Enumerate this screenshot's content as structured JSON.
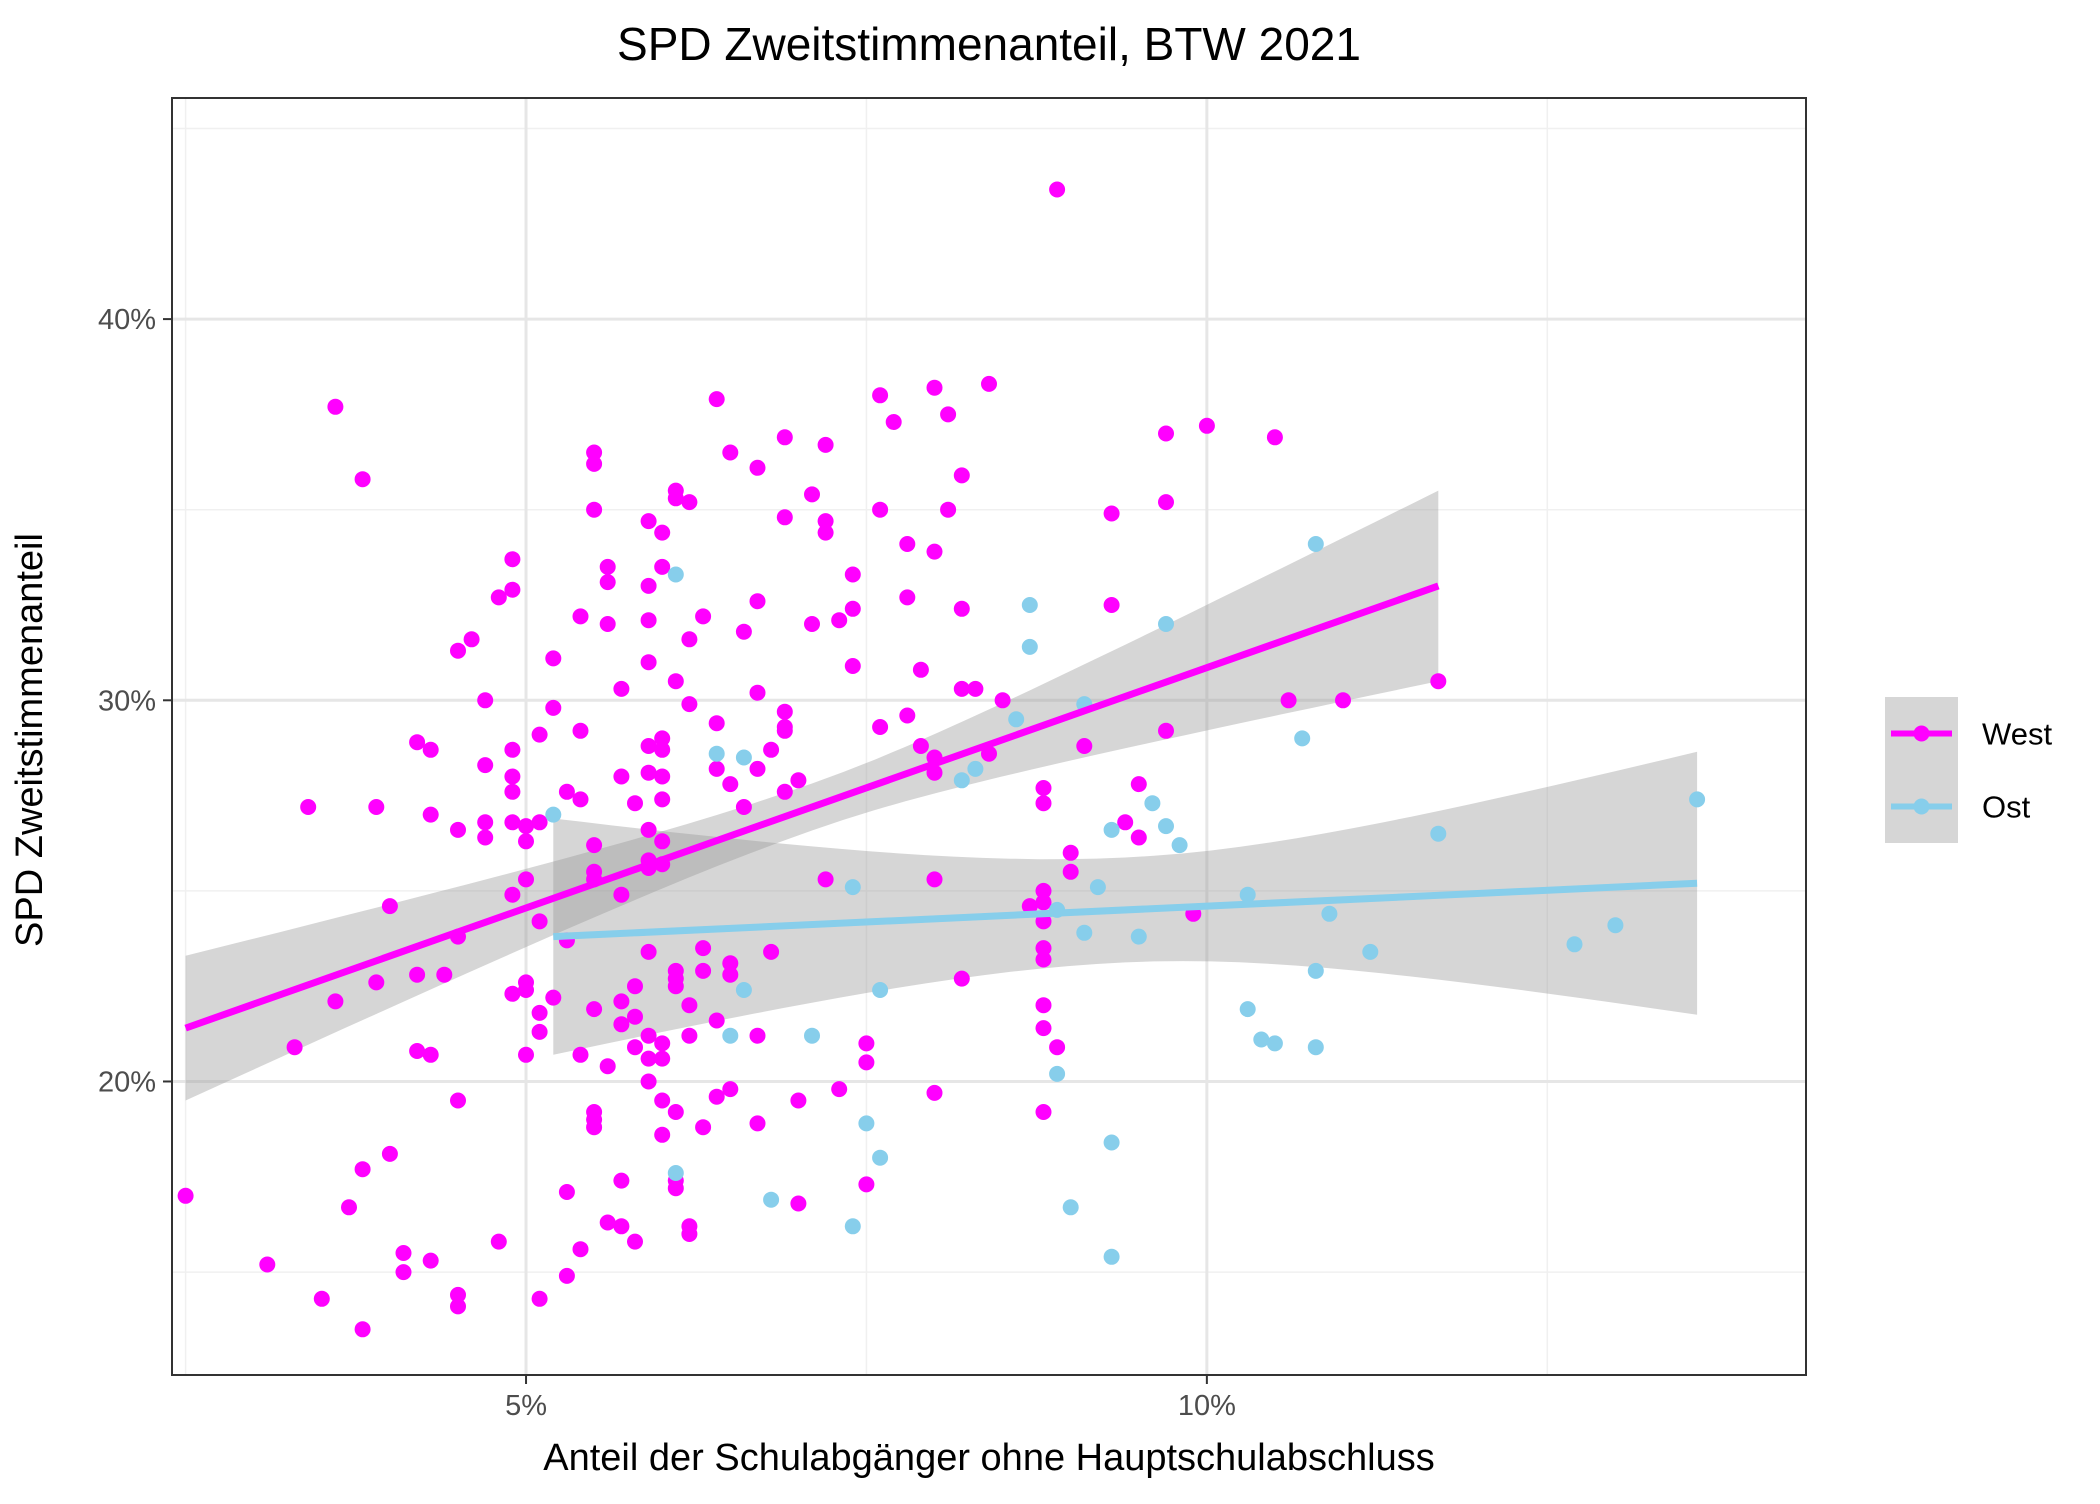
{
  "chart_data": {
    "type": "scatter",
    "title": "SPD Zweitstimmenanteil, BTW 2021",
    "xlabel": "Anteil der Schulabgänger ohne Hauptschulabschluss",
    "ylabel": "SPD Zweitstimmenanteil",
    "xlim": [
      2.4,
      14.4
    ],
    "ylim": [
      12.3,
      45.8
    ],
    "x_ticks": [
      {
        "value": 5,
        "label": "5%"
      },
      {
        "value": 10,
        "label": "10%"
      }
    ],
    "y_ticks": [
      {
        "value": 20,
        "label": "20%"
      },
      {
        "value": 30,
        "label": "30%"
      },
      {
        "value": 40,
        "label": "40%"
      }
    ],
    "grid": true,
    "legend_position": "right",
    "series": [
      {
        "name": "West",
        "color": "#FF00FF",
        "trend": {
          "x": [
            2.5,
            11.7
          ],
          "y": [
            21.4,
            33.0
          ],
          "ci_lower": [
            19.5,
            30.5
          ],
          "ci_upper": [
            23.3,
            35.5
          ]
        },
        "points": [
          [
            2.5,
            17.0
          ],
          [
            3.1,
            15.2
          ],
          [
            3.3,
            20.9
          ],
          [
            3.4,
            27.2
          ],
          [
            3.5,
            14.3
          ],
          [
            3.6,
            22.1
          ],
          [
            3.6,
            37.7
          ],
          [
            3.7,
            16.7
          ],
          [
            3.8,
            13.5
          ],
          [
            3.8,
            17.7
          ],
          [
            3.8,
            35.8
          ],
          [
            3.9,
            22.6
          ],
          [
            3.9,
            27.2
          ],
          [
            4.0,
            18.1
          ],
          [
            4.0,
            24.6
          ],
          [
            4.1,
            15.5
          ],
          [
            4.1,
            15.0
          ],
          [
            4.2,
            20.8
          ],
          [
            4.2,
            22.8
          ],
          [
            4.2,
            28.9
          ],
          [
            4.3,
            15.3
          ],
          [
            4.3,
            20.7
          ],
          [
            4.3,
            27.0
          ],
          [
            4.3,
            28.7
          ],
          [
            4.4,
            22.8
          ],
          [
            4.5,
            14.4
          ],
          [
            4.5,
            14.1
          ],
          [
            4.5,
            19.5
          ],
          [
            4.5,
            23.8
          ],
          [
            4.5,
            26.6
          ],
          [
            4.5,
            31.3
          ],
          [
            4.6,
            31.6
          ],
          [
            4.7,
            26.4
          ],
          [
            4.7,
            26.8
          ],
          [
            4.7,
            28.3
          ],
          [
            4.7,
            30.0
          ],
          [
            4.8,
            15.8
          ],
          [
            4.8,
            32.7
          ],
          [
            4.9,
            22.3
          ],
          [
            4.9,
            24.9
          ],
          [
            4.9,
            26.8
          ],
          [
            4.9,
            27.6
          ],
          [
            4.9,
            28.0
          ],
          [
            4.9,
            28.7
          ],
          [
            4.9,
            32.9
          ],
          [
            4.9,
            33.7
          ],
          [
            5.0,
            20.7
          ],
          [
            5.0,
            22.4
          ],
          [
            5.0,
            22.6
          ],
          [
            5.0,
            25.3
          ],
          [
            5.0,
            26.3
          ],
          [
            5.0,
            26.7
          ],
          [
            5.1,
            14.3
          ],
          [
            5.1,
            21.3
          ],
          [
            5.1,
            21.8
          ],
          [
            5.1,
            24.2
          ],
          [
            5.1,
            26.8
          ],
          [
            5.1,
            29.1
          ],
          [
            5.2,
            22.2
          ],
          [
            5.2,
            29.8
          ],
          [
            5.2,
            31.1
          ],
          [
            5.3,
            14.9
          ],
          [
            5.3,
            17.1
          ],
          [
            5.3,
            23.7
          ],
          [
            5.3,
            27.6
          ],
          [
            5.4,
            15.6
          ],
          [
            5.4,
            20.7
          ],
          [
            5.4,
            27.4
          ],
          [
            5.4,
            29.2
          ],
          [
            5.4,
            32.2
          ],
          [
            5.5,
            18.8
          ],
          [
            5.5,
            19.0
          ],
          [
            5.5,
            19.2
          ],
          [
            5.5,
            21.9
          ],
          [
            5.5,
            25.3
          ],
          [
            5.5,
            25.5
          ],
          [
            5.5,
            26.2
          ],
          [
            5.5,
            35.0
          ],
          [
            5.5,
            36.2
          ],
          [
            5.5,
            36.5
          ],
          [
            5.6,
            16.3
          ],
          [
            5.6,
            20.4
          ],
          [
            5.6,
            32.0
          ],
          [
            5.6,
            33.1
          ],
          [
            5.6,
            33.5
          ],
          [
            5.7,
            16.2
          ],
          [
            5.7,
            17.4
          ],
          [
            5.7,
            21.5
          ],
          [
            5.7,
            22.1
          ],
          [
            5.7,
            24.9
          ],
          [
            5.7,
            28.0
          ],
          [
            5.7,
            30.3
          ],
          [
            5.8,
            15.8
          ],
          [
            5.8,
            20.9
          ],
          [
            5.8,
            21.7
          ],
          [
            5.8,
            22.5
          ],
          [
            5.8,
            27.3
          ],
          [
            5.9,
            20.0
          ],
          [
            5.9,
            20.6
          ],
          [
            5.9,
            21.2
          ],
          [
            5.9,
            23.4
          ],
          [
            5.9,
            25.6
          ],
          [
            5.9,
            25.8
          ],
          [
            5.9,
            26.6
          ],
          [
            5.9,
            28.1
          ],
          [
            5.9,
            28.8
          ],
          [
            5.9,
            31.0
          ],
          [
            5.9,
            32.1
          ],
          [
            5.9,
            33.0
          ],
          [
            5.9,
            34.7
          ],
          [
            6.0,
            18.6
          ],
          [
            6.0,
            19.5
          ],
          [
            6.0,
            20.6
          ],
          [
            6.0,
            21.0
          ],
          [
            6.0,
            25.7
          ],
          [
            6.0,
            26.3
          ],
          [
            6.0,
            27.4
          ],
          [
            6.0,
            28.0
          ],
          [
            6.0,
            28.7
          ],
          [
            6.0,
            29.0
          ],
          [
            6.0,
            33.5
          ],
          [
            6.0,
            34.4
          ],
          [
            6.1,
            17.2
          ],
          [
            6.1,
            17.4
          ],
          [
            6.1,
            19.2
          ],
          [
            6.1,
            22.5
          ],
          [
            6.1,
            22.7
          ],
          [
            6.1,
            22.9
          ],
          [
            6.1,
            30.5
          ],
          [
            6.1,
            35.3
          ],
          [
            6.1,
            35.5
          ],
          [
            6.2,
            16.0
          ],
          [
            6.2,
            16.2
          ],
          [
            6.2,
            21.2
          ],
          [
            6.2,
            22.0
          ],
          [
            6.2,
            29.9
          ],
          [
            6.2,
            31.6
          ],
          [
            6.2,
            35.2
          ],
          [
            6.3,
            18.8
          ],
          [
            6.3,
            22.9
          ],
          [
            6.3,
            23.5
          ],
          [
            6.3,
            32.2
          ],
          [
            6.4,
            19.6
          ],
          [
            6.4,
            21.6
          ],
          [
            6.4,
            28.2
          ],
          [
            6.4,
            29.4
          ],
          [
            6.4,
            37.9
          ],
          [
            6.5,
            19.8
          ],
          [
            6.5,
            22.8
          ],
          [
            6.5,
            23.1
          ],
          [
            6.5,
            27.8
          ],
          [
            6.5,
            36.5
          ],
          [
            6.6,
            27.2
          ],
          [
            6.6,
            31.8
          ],
          [
            6.7,
            18.9
          ],
          [
            6.7,
            21.2
          ],
          [
            6.7,
            28.2
          ],
          [
            6.7,
            30.2
          ],
          [
            6.7,
            32.6
          ],
          [
            6.7,
            36.1
          ],
          [
            6.8,
            23.4
          ],
          [
            6.8,
            28.7
          ],
          [
            6.9,
            27.6
          ],
          [
            6.9,
            29.2
          ],
          [
            6.9,
            29.3
          ],
          [
            6.9,
            29.7
          ],
          [
            6.9,
            34.8
          ],
          [
            6.9,
            36.9
          ],
          [
            7.0,
            16.8
          ],
          [
            7.0,
            19.5
          ],
          [
            7.0,
            27.9
          ],
          [
            7.1,
            32.0
          ],
          [
            7.1,
            35.4
          ],
          [
            7.2,
            25.3
          ],
          [
            7.2,
            34.4
          ],
          [
            7.2,
            34.7
          ],
          [
            7.2,
            36.7
          ],
          [
            7.3,
            19.8
          ],
          [
            7.3,
            32.1
          ],
          [
            7.4,
            30.9
          ],
          [
            7.4,
            32.4
          ],
          [
            7.4,
            33.3
          ],
          [
            7.5,
            17.3
          ],
          [
            7.5,
            20.5
          ],
          [
            7.5,
            21.0
          ],
          [
            7.6,
            29.3
          ],
          [
            7.6,
            35.0
          ],
          [
            7.6,
            38.0
          ],
          [
            7.7,
            37.3
          ],
          [
            7.8,
            29.6
          ],
          [
            7.8,
            32.7
          ],
          [
            7.8,
            34.1
          ],
          [
            7.9,
            28.8
          ],
          [
            7.9,
            30.8
          ],
          [
            8.0,
            19.7
          ],
          [
            8.0,
            25.3
          ],
          [
            8.0,
            28.1
          ],
          [
            8.0,
            28.5
          ],
          [
            8.0,
            33.9
          ],
          [
            8.0,
            38.2
          ],
          [
            8.1,
            35.0
          ],
          [
            8.1,
            37.5
          ],
          [
            8.2,
            22.7
          ],
          [
            8.2,
            30.3
          ],
          [
            8.2,
            32.4
          ],
          [
            8.2,
            35.9
          ],
          [
            8.3,
            30.3
          ],
          [
            8.4,
            28.6
          ],
          [
            8.4,
            38.3
          ],
          [
            8.5,
            30.0
          ],
          [
            8.7,
            24.6
          ],
          [
            8.8,
            19.2
          ],
          [
            8.8,
            21.4
          ],
          [
            8.8,
            22.0
          ],
          [
            8.8,
            23.2
          ],
          [
            8.8,
            23.5
          ],
          [
            8.8,
            24.2
          ],
          [
            8.8,
            24.7
          ],
          [
            8.8,
            25.0
          ],
          [
            8.8,
            27.3
          ],
          [
            8.8,
            27.7
          ],
          [
            8.9,
            20.9
          ],
          [
            8.9,
            43.4
          ],
          [
            9.0,
            25.5
          ],
          [
            9.0,
            26.0
          ],
          [
            9.1,
            28.8
          ],
          [
            9.3,
            32.5
          ],
          [
            9.3,
            34.9
          ],
          [
            9.4,
            26.8
          ],
          [
            9.5,
            26.4
          ],
          [
            9.5,
            27.8
          ],
          [
            9.7,
            29.2
          ],
          [
            9.7,
            35.2
          ],
          [
            9.7,
            37.0
          ],
          [
            9.9,
            24.4
          ],
          [
            10.0,
            37.2
          ],
          [
            10.5,
            36.9
          ],
          [
            10.6,
            30.0
          ],
          [
            11.0,
            30.0
          ],
          [
            11.7,
            30.5
          ]
        ]
      },
      {
        "name": "Ost",
        "color": "#87CEEB",
        "trend": {
          "x": [
            5.2,
            13.6
          ],
          "y": [
            23.8,
            25.2
          ],
          "ci_lower": [
            20.7,
            21.8
          ],
          "ci_upper": [
            26.9,
            28.7
          ]
        },
        "points": [
          [
            5.2,
            27.0
          ],
          [
            6.1,
            17.6
          ],
          [
            6.1,
            33.3
          ],
          [
            6.4,
            28.6
          ],
          [
            6.6,
            28.5
          ],
          [
            6.6,
            22.4
          ],
          [
            6.5,
            21.2
          ],
          [
            6.8,
            16.9
          ],
          [
            7.1,
            21.2
          ],
          [
            7.4,
            25.1
          ],
          [
            7.4,
            16.2
          ],
          [
            7.5,
            18.9
          ],
          [
            7.6,
            22.4
          ],
          [
            7.6,
            18.0
          ],
          [
            8.2,
            27.9
          ],
          [
            8.3,
            28.2
          ],
          [
            8.6,
            29.5
          ],
          [
            8.7,
            31.4
          ],
          [
            8.7,
            32.5
          ],
          [
            8.9,
            24.5
          ],
          [
            8.9,
            20.2
          ],
          [
            9.0,
            16.7
          ],
          [
            9.1,
            23.9
          ],
          [
            9.1,
            29.9
          ],
          [
            9.2,
            25.1
          ],
          [
            9.3,
            26.6
          ],
          [
            9.3,
            18.4
          ],
          [
            9.3,
            15.4
          ],
          [
            9.5,
            23.8
          ],
          [
            9.6,
            27.3
          ],
          [
            9.7,
            26.7
          ],
          [
            9.7,
            32.0
          ],
          [
            9.8,
            26.2
          ],
          [
            10.3,
            24.9
          ],
          [
            10.3,
            21.9
          ],
          [
            10.4,
            21.1
          ],
          [
            10.5,
            21.0
          ],
          [
            10.7,
            29.0
          ],
          [
            10.8,
            34.1
          ],
          [
            10.8,
            22.9
          ],
          [
            10.8,
            20.9
          ],
          [
            10.9,
            24.4
          ],
          [
            11.2,
            23.4
          ],
          [
            11.7,
            26.5
          ],
          [
            12.7,
            23.6
          ],
          [
            13.0,
            24.1
          ],
          [
            13.6,
            27.4
          ]
        ]
      }
    ]
  }
}
